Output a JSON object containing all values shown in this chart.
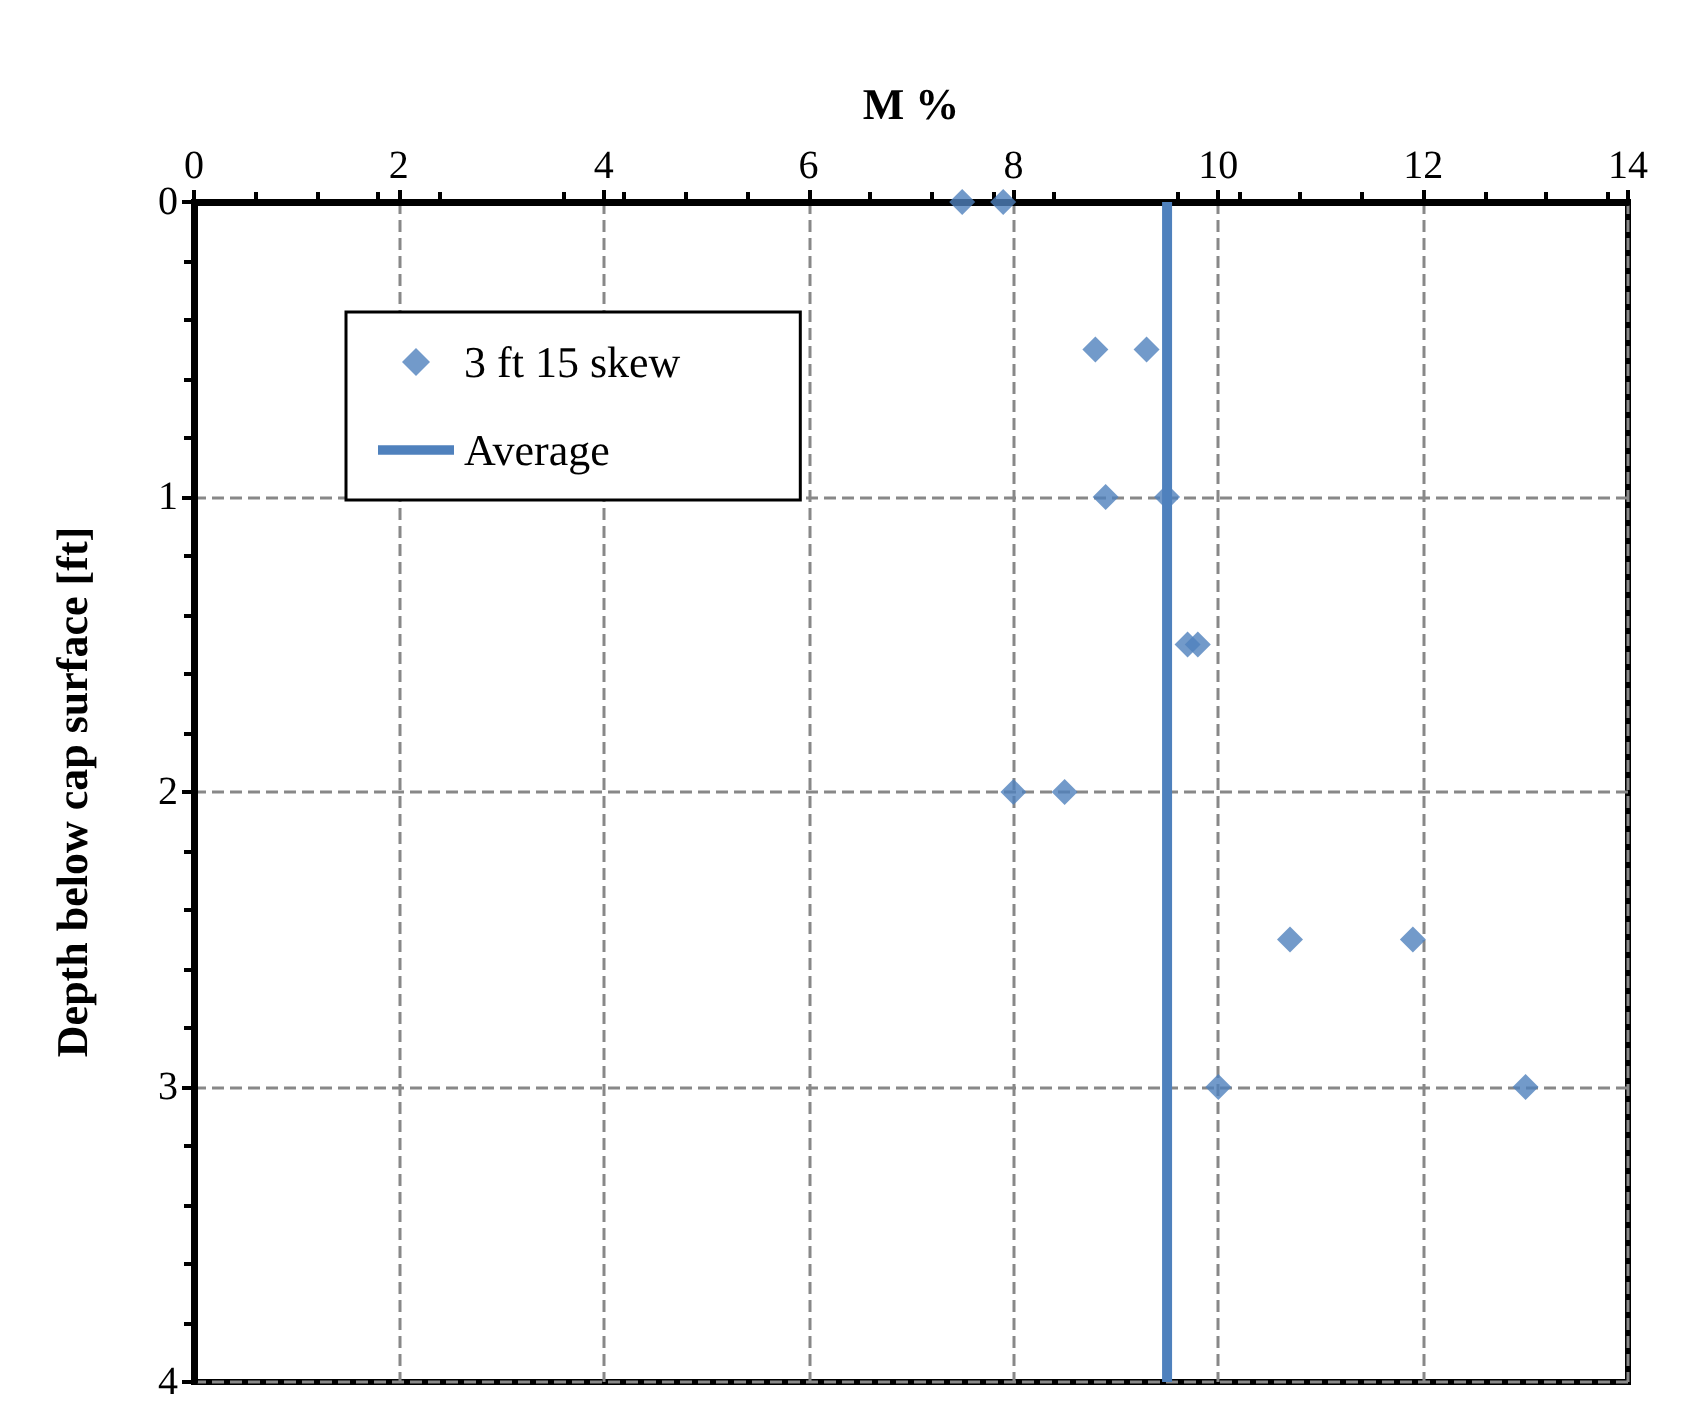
{
  "chart_data": {
    "type": "scatter",
    "xlabel": "M %",
    "ylabel": "Depth below cap surface [ft]",
    "xlim": [
      0,
      14
    ],
    "xticks": [
      0,
      2,
      4,
      6,
      8,
      10,
      12,
      14
    ],
    "ylim": [
      4,
      0
    ],
    "yticks": [
      0,
      1,
      2,
      3,
      4
    ],
    "grid": true,
    "legend": "top left",
    "marker": "diamond",
    "series": [
      {
        "name": "3 ft 15 skew",
        "color": "#4f81bd",
        "x": [
          7.5,
          7.9,
          8.8,
          9.3,
          8.9,
          9.5,
          9.7,
          9.8,
          8.0,
          8.5,
          10.7,
          11.9,
          10.0,
          13.0
        ],
        "values": [
          0,
          0,
          0.5,
          0.5,
          1,
          1,
          1.5,
          1.5,
          2,
          2,
          2.5,
          2.5,
          3,
          3
        ]
      },
      {
        "name": "Average",
        "type": "line",
        "color": "#4f81bd",
        "marker": "none",
        "line_style": "solid",
        "x": [
          9.5,
          9.5
        ],
        "values": [
          0,
          4
        ]
      }
    ]
  }
}
